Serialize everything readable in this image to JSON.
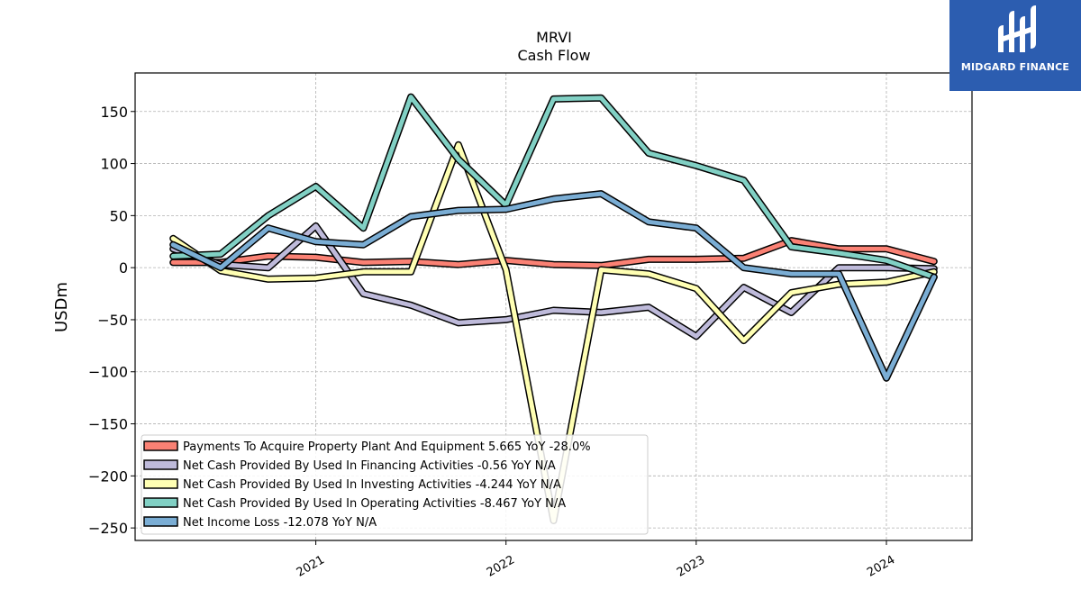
{
  "chart_data": {
    "type": "line",
    "title": "MRVI",
    "subtitle": "Cash Flow",
    "ylabel": "USDm",
    "ylim": [
      -262,
      187
    ],
    "yticks": [
      150,
      100,
      50,
      0,
      -50,
      -100,
      -150,
      -200,
      -250
    ],
    "ytick_labels": [
      "150",
      "100",
      "50",
      "0",
      "−50",
      "−100",
      "−150",
      "−200",
      "−250"
    ],
    "xlim": [
      2020.05,
      2024.45
    ],
    "xticks": [
      2021,
      2022,
      2023,
      2024
    ],
    "xtick_labels": [
      "2021",
      "2022",
      "2023",
      "2024"
    ],
    "grid": true,
    "legend_position": "bottom-left",
    "x": [
      2020.25,
      2020.5,
      2020.75,
      2021.0,
      2021.25,
      2021.5,
      2021.75,
      2022.0,
      2022.25,
      2022.5,
      2022.75,
      2023.0,
      2023.25,
      2023.5,
      2023.75,
      2024.0,
      2024.25
    ],
    "series": [
      {
        "name": "Payments To Acquire Property Plant And Equipment",
        "legend": "Payments To Acquire Property Plant And Equipment  5.665 YoY -28.0%",
        "color": "#fa8174",
        "values": [
          5,
          5,
          11,
          10,
          5,
          6,
          3,
          7,
          3,
          2,
          8,
          8,
          9,
          26,
          18,
          18,
          6
        ]
      },
      {
        "name": "Net Cash Provided By Used In Financing Activities",
        "legend": "Net Cash Provided By Used In Financing Activities  -0.56 YoY N/A",
        "color": "#bebada",
        "values": [
          18,
          3,
          0,
          40,
          -25,
          -36,
          -53,
          -50,
          -41,
          -43,
          -38,
          -66,
          -19,
          -43,
          0,
          0,
          -1
        ]
      },
      {
        "name": "Net Cash Provided By Used In Investing Activities",
        "legend": "Net Cash Provided By Used In Investing Activities  -4.244 YoY N/A",
        "color": "#ffffb3",
        "values": [
          28,
          -3,
          -11,
          -10,
          -4,
          -4,
          118,
          -2,
          -243,
          -2,
          -6,
          -20,
          -70,
          -24,
          -16,
          -14,
          -4
        ]
      },
      {
        "name": "Net Cash Provided By Used In Operating Activities",
        "legend": "Net Cash Provided By Used In Operating Activities  -8.467 YoY N/A",
        "color": "#81d0c4",
        "values": [
          11,
          13,
          50,
          78,
          38,
          164,
          104,
          60,
          162,
          163,
          110,
          98,
          84,
          20,
          14,
          7,
          -9
        ]
      },
      {
        "name": "Net Income Loss",
        "legend": "Net Income Loss  -12.078 YoY N/A",
        "color": "#7aadd4",
        "values": [
          22,
          0,
          38,
          25,
          22,
          49,
          55,
          56,
          66,
          71,
          44,
          38,
          0,
          -6,
          -6,
          -106,
          -9
        ]
      }
    ]
  },
  "brand": {
    "name": "MIDGARD FINANCE",
    "logo_color": "#2c5db0"
  }
}
